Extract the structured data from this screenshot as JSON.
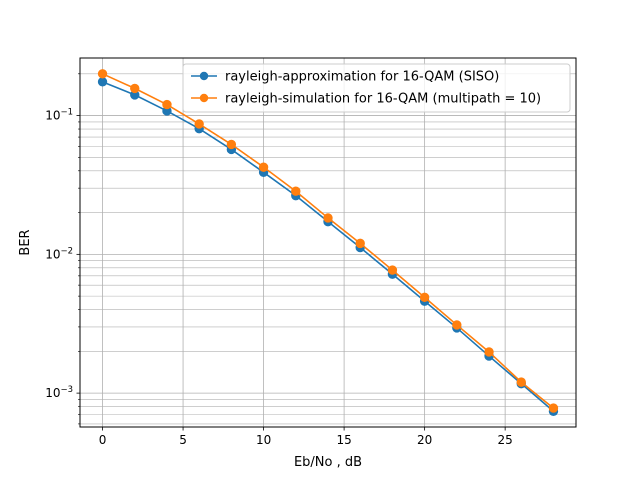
{
  "chart_data": {
    "type": "line",
    "title": "",
    "xlabel": "Eb/No , dB",
    "ylabel": "BER",
    "xlim": [
      -1.4,
      29.4
    ],
    "ylim": [
      0.00057,
      0.26
    ],
    "yscale": "log",
    "grid": "on (major and minor on y)",
    "legend_position": "top-right",
    "x_ticks": [
      0,
      5,
      10,
      15,
      20,
      25
    ],
    "y_ticks": [
      {
        "value": 0.001,
        "base": "10",
        "exp": "−3"
      },
      {
        "value": 0.01,
        "base": "10",
        "exp": "−2"
      },
      {
        "value": 0.1,
        "base": "10",
        "exp": "−1"
      }
    ],
    "x": [
      0,
      2,
      4,
      6,
      8,
      10,
      12,
      14,
      16,
      18,
      20,
      22,
      24,
      26,
      28
    ],
    "series": [
      {
        "name": "rayleigh-approximation for 16-QAM (SISO)",
        "color": "#1f77b4",
        "values": [
          0.175,
          0.141,
          0.108,
          0.0805,
          0.057,
          0.039,
          0.0265,
          0.0172,
          0.0112,
          0.0072,
          0.0046,
          0.00295,
          0.00185,
          0.00117,
          0.00074
        ]
      },
      {
        "name": "rayleigh-simulation for 16-QAM (multipath = 10)",
        "color": "#ff7f0e",
        "values": [
          0.2,
          0.157,
          0.12,
          0.087,
          0.062,
          0.0425,
          0.0285,
          0.0183,
          0.012,
          0.0077,
          0.0049,
          0.0031,
          0.00198,
          0.0012,
          0.00078
        ]
      }
    ]
  }
}
